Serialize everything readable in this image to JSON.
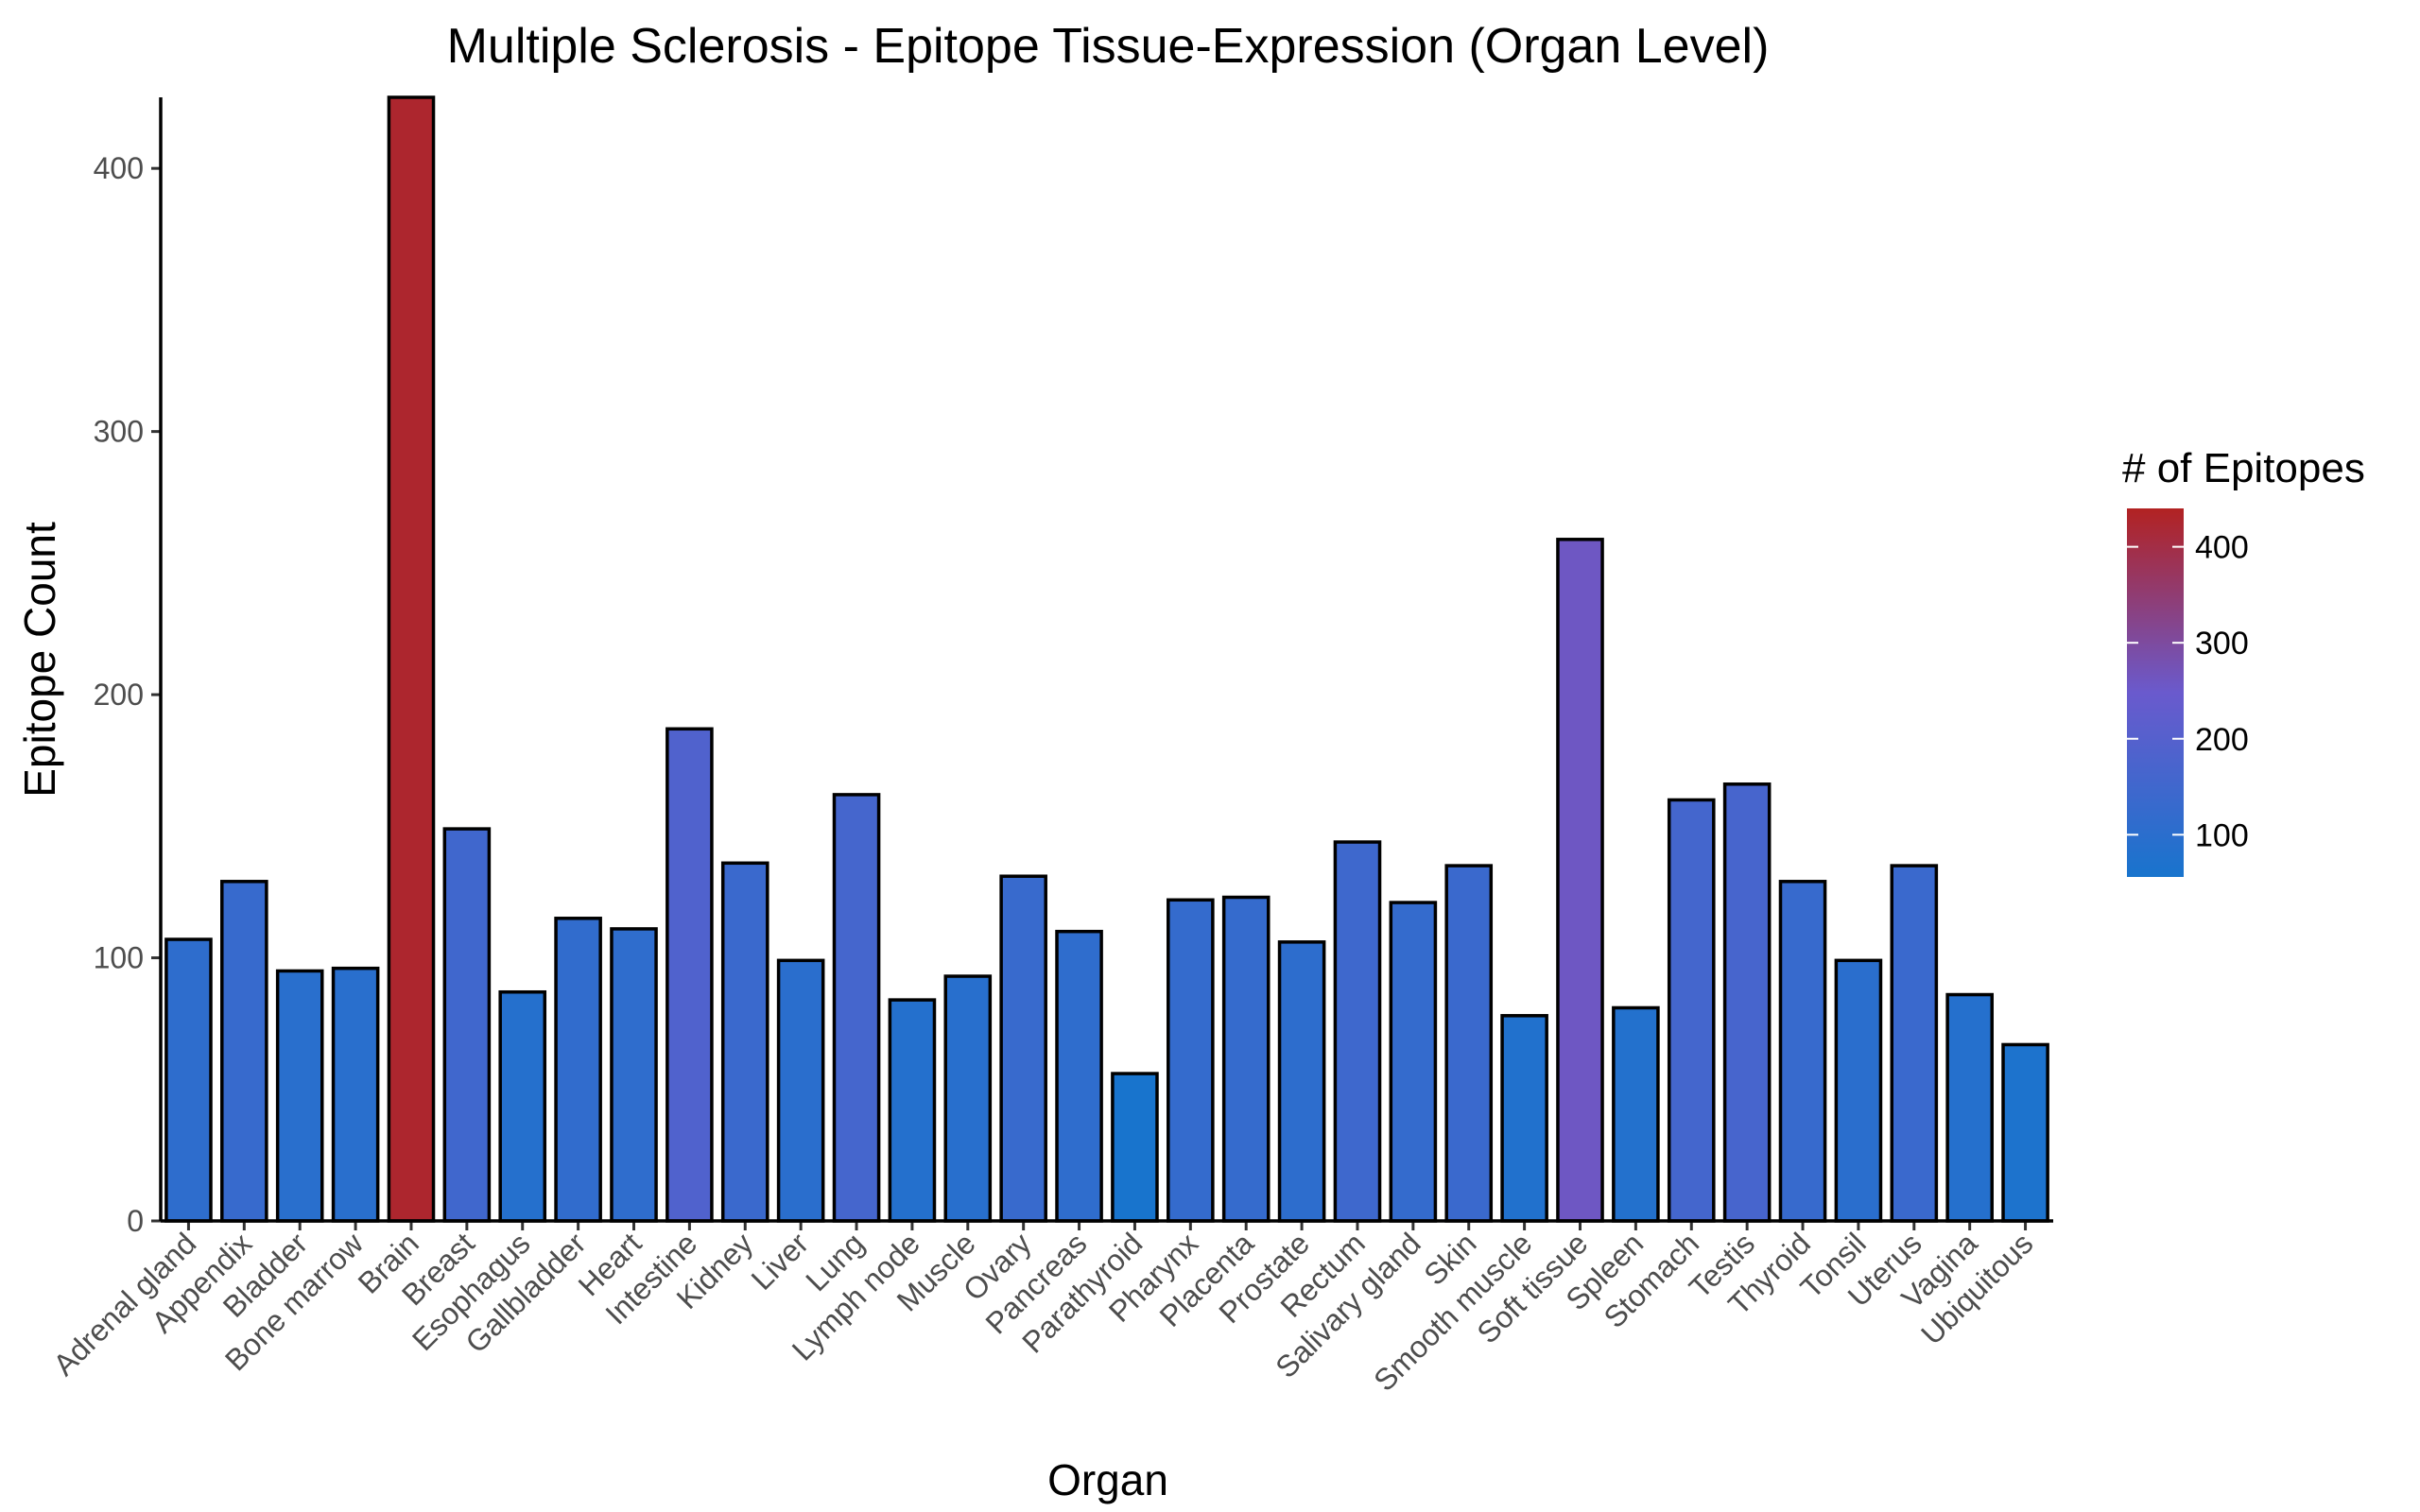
{
  "chart_data": {
    "type": "bar",
    "title": "Multiple Sclerosis - Epitope Tissue-Expression (Organ Level)",
    "xlabel": "Organ",
    "ylabel": "Epitope Count",
    "categories": [
      "Adrenal gland",
      "Appendix",
      "Bladder",
      "Bone marrow",
      "Brain",
      "Breast",
      "Esophagus",
      "Gallbladder",
      "Heart",
      "Intestine",
      "Kidney",
      "Liver",
      "Lung",
      "Lymph node",
      "Muscle",
      "Ovary",
      "Pancreas",
      "Parathyroid",
      "Pharynx",
      "Placenta",
      "Prostate",
      "Rectum",
      "Salivary gland",
      "Skin",
      "Smooth muscle",
      "Soft tissue",
      "Spleen",
      "Stomach",
      "Testis",
      "Thyroid",
      "Tonsil",
      "Uterus",
      "Vagina",
      "Ubiquitous"
    ],
    "values": [
      107,
      129,
      95,
      96,
      427,
      149,
      87,
      115,
      111,
      187,
      136,
      99,
      162,
      84,
      93,
      131,
      110,
      56,
      122,
      123,
      106,
      144,
      121,
      135,
      78,
      259,
      81,
      160,
      166,
      129,
      99,
      135,
      86,
      67
    ],
    "ylim": [
      0,
      427
    ],
    "yticks": [
      0,
      100,
      200,
      300,
      400
    ],
    "grid": false,
    "legend": {
      "title": "# of Epitopes",
      "placement": "right",
      "ticks": [
        100,
        200,
        300,
        400
      ],
      "range": [
        56,
        440
      ],
      "low_color": "#1874CD",
      "mid_color": "#6A5ACD",
      "high_color": "#B22222"
    }
  }
}
